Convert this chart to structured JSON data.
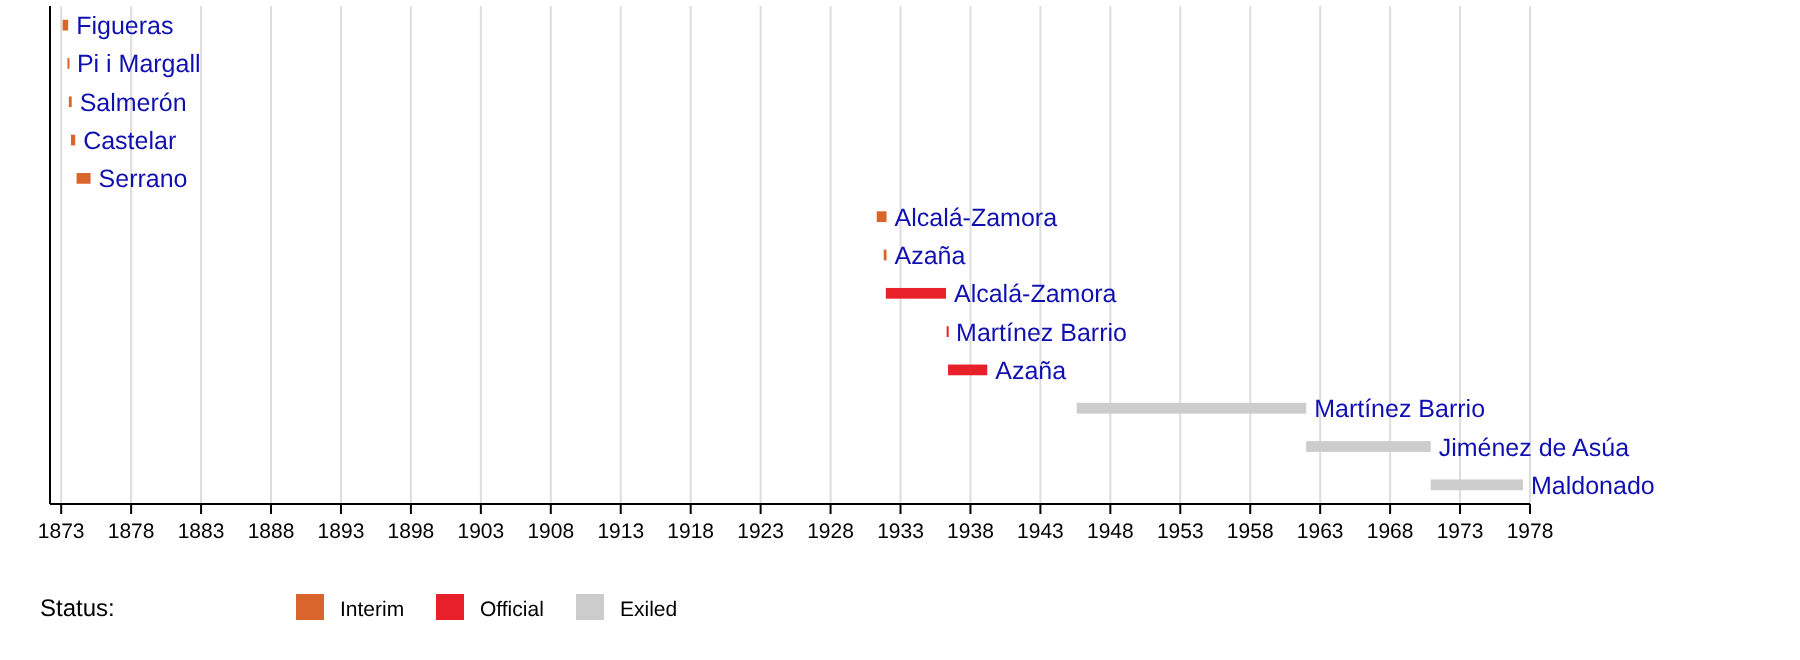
{
  "chart_data": {
    "type": "bar",
    "orientation": "horizontal",
    "categories": [
      "Figueras",
      "Pi i Margall",
      "Salmerón",
      "Castelar",
      "Serrano",
      "Alcalá-Zamora",
      "Azaña",
      "Alcalá-Zamora",
      "Martínez Barrio",
      "Azaña",
      "Martínez Barrio",
      "Jiménez de Asúa",
      "Maldonado"
    ],
    "series": [
      {
        "name": "Interim",
        "color": "#d9642c",
        "base": [
          1873.1,
          1873.45,
          1873.55,
          1873.7,
          1874.1,
          1931.3,
          1931.8,
          null,
          null,
          null,
          null,
          null,
          null
        ],
        "values": [
          0.4,
          0.1,
          0.2,
          0.3,
          1.0,
          0.7,
          0.2,
          null,
          null,
          null,
          null,
          null,
          null
        ]
      },
      {
        "name": "Official",
        "color": "#e8202a",
        "base": [
          null,
          null,
          null,
          null,
          null,
          null,
          null,
          1931.95,
          1936.3,
          1936.4,
          null,
          null,
          null
        ],
        "values": [
          null,
          null,
          null,
          null,
          null,
          null,
          null,
          4.3,
          0.1,
          2.8,
          null,
          null,
          null
        ]
      },
      {
        "name": "Exiled",
        "color": "#cccccc",
        "base": [
          null,
          null,
          null,
          null,
          null,
          null,
          null,
          null,
          null,
          null,
          1945.6,
          1962.0,
          1970.9
        ],
        "values": [
          null,
          null,
          null,
          null,
          null,
          null,
          null,
          null,
          null,
          null,
          16.4,
          8.9,
          6.6
        ]
      }
    ],
    "xlim": [
      1872.2,
      1978
    ],
    "xticks": [
      1873,
      1878,
      1883,
      1888,
      1893,
      1898,
      1903,
      1908,
      1913,
      1918,
      1923,
      1928,
      1933,
      1938,
      1943,
      1948,
      1953,
      1958,
      1963,
      1968,
      1973,
      1978
    ],
    "grid": "x",
    "legend": "bottom",
    "legend_title": "Status:"
  }
}
